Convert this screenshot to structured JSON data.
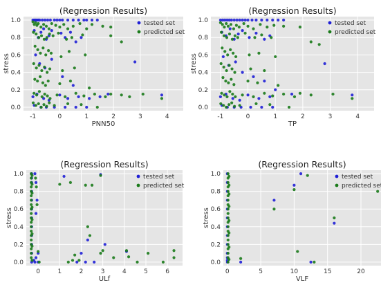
{
  "colors": {
    "panel_bg": "#e5e5e5",
    "grid": "#ffffff",
    "tested": "#1f1fd6",
    "predicted": "#1a7a1a",
    "text": "#333333"
  },
  "chart_data": [
    {
      "type": "scatter",
      "title": "(Regression Results)",
      "xlabel": "PNN50",
      "ylabel": "stress",
      "xlim": [
        -1.35,
        4.6
      ],
      "ylim": [
        -0.04,
        1.04
      ],
      "xticks": [
        "-1",
        "0",
        "1",
        "2",
        "3",
        "4"
      ],
      "yticks": [
        "0.0",
        "0.2",
        "0.4",
        "0.6",
        "0.8",
        "1.0"
      ],
      "legend": "top-right",
      "grid": true,
      "series": [
        {
          "name": "tested set",
          "x": [
            -1.0,
            -0.95,
            -0.9,
            -0.85,
            -0.8,
            -0.75,
            -0.65,
            -0.55,
            -0.45,
            -0.35,
            -0.2,
            -0.1,
            0.0,
            0.1,
            0.3,
            0.5,
            0.7,
            0.9,
            1.0,
            1.2,
            1.4,
            -0.95,
            -0.8,
            -0.7,
            -0.6,
            -0.5,
            -0.4,
            -0.3,
            0.05,
            0.2,
            0.4,
            0.6,
            0.8,
            -0.9,
            -0.75,
            -0.55,
            -0.3,
            0.1,
            0.5,
            -1.0,
            -0.85,
            -0.6,
            -0.4,
            0.0,
            0.3,
            0.7,
            1.1,
            1.5,
            1.8,
            2.8,
            3.8,
            -0.95,
            -0.7,
            -0.5,
            -0.2,
            0.2,
            0.6,
            1.0
          ],
          "y": [
            1.0,
            1.0,
            1.0,
            1.0,
            1.0,
            1.0,
            1.0,
            1.0,
            1.0,
            1.0,
            1.0,
            1.0,
            1.0,
            1.0,
            1.0,
            1.0,
            1.0,
            1.0,
            1.0,
            1.0,
            1.0,
            0.88,
            0.8,
            0.86,
            0.9,
            0.78,
            0.82,
            0.88,
            0.85,
            0.8,
            0.86,
            0.75,
            0.8,
            0.6,
            0.5,
            0.45,
            0.55,
            0.35,
            0.25,
            0.12,
            0.15,
            0.1,
            0.08,
            0.14,
            0.1,
            0.12,
            0.1,
            0.12,
            0.15,
            0.52,
            0.14,
            0.02,
            0.0,
            0.0,
            0.0,
            0.0,
            0.0,
            0.0
          ]
        },
        {
          "name": "predicted set",
          "x": [
            -1.0,
            -0.95,
            -0.9,
            -0.85,
            -0.8,
            -0.7,
            -0.6,
            -0.5,
            -0.4,
            -0.3,
            -0.15,
            0.0,
            0.15,
            0.3,
            0.5,
            0.75,
            1.0,
            1.2,
            1.6,
            1.9,
            -0.98,
            -0.88,
            -0.78,
            -0.68,
            -0.58,
            -0.48,
            -0.38,
            -0.25,
            -0.05,
            0.25,
            0.45,
            0.85,
            1.9,
            2.3,
            -0.92,
            -0.82,
            -0.72,
            -0.62,
            -0.52,
            -0.42,
            -0.32,
            0.05,
            0.35,
            0.95,
            -0.97,
            -0.87,
            -0.77,
            -0.67,
            -0.57,
            -0.47,
            -0.37,
            0.1,
            0.55,
            -0.93,
            -0.83,
            -0.73,
            -0.63,
            -0.53,
            -0.43,
            0.0,
            0.4,
            1.1,
            -0.96,
            -0.86,
            -0.76,
            -0.66,
            -0.56,
            -0.46,
            -0.36,
            -0.1,
            0.2,
            0.6,
            0.9,
            1.3,
            1.7,
            1.9,
            2.3,
            2.6,
            3.1,
            3.8,
            -0.99,
            -0.89,
            -0.79,
            -0.69,
            -0.59,
            -0.49,
            -0.39,
            -0.2,
            0.3,
            0.8,
            1.4
          ],
          "y": [
            0.98,
            0.95,
            0.97,
            0.94,
            0.96,
            0.92,
            0.95,
            0.93,
            0.9,
            0.96,
            0.94,
            0.92,
            0.95,
            0.9,
            0.93,
            0.96,
            0.9,
            0.95,
            0.93,
            0.92,
            0.86,
            0.84,
            0.8,
            0.82,
            0.78,
            0.8,
            0.84,
            0.82,
            0.85,
            0.78,
            0.8,
            0.83,
            0.82,
            0.75,
            0.7,
            0.66,
            0.62,
            0.68,
            0.6,
            0.65,
            0.62,
            0.58,
            0.64,
            0.6,
            0.5,
            0.45,
            0.48,
            0.42,
            0.46,
            0.4,
            0.44,
            0.42,
            0.45,
            0.32,
            0.3,
            0.35,
            0.28,
            0.25,
            0.3,
            0.27,
            0.3,
            0.22,
            0.16,
            0.14,
            0.18,
            0.12,
            0.15,
            0.13,
            0.1,
            0.14,
            0.12,
            0.16,
            0.13,
            0.15,
            0.12,
            0.15,
            0.14,
            0.12,
            0.15,
            0.1,
            0.05,
            0.02,
            0.04,
            0.0,
            0.03,
            0.01,
            0.05,
            0.02,
            0.04,
            0.03,
            0.0
          ]
        }
      ]
    },
    {
      "type": "scatter",
      "title": "(Regression Results)",
      "xlabel": "TP",
      "ylabel": "stress",
      "xlim": [
        -1.35,
        4.6
      ],
      "ylim": [
        -0.04,
        1.04
      ],
      "xticks": [
        "-1",
        "0",
        "1",
        "2",
        "3",
        "4"
      ],
      "yticks": [
        "0.0",
        "0.2",
        "0.4",
        "0.6",
        "0.8",
        "1.0"
      ],
      "legend": "top-right",
      "grid": true,
      "series": [
        {
          "name": "tested set",
          "x": [
            -1.0,
            -0.92,
            -0.84,
            -0.76,
            -0.68,
            -0.6,
            -0.5,
            -0.4,
            -0.3,
            -0.2,
            -0.1,
            0.0,
            0.15,
            0.3,
            0.5,
            0.7,
            0.9,
            1.1,
            1.3,
            -0.95,
            -0.8,
            -0.65,
            -0.5,
            -0.35,
            -0.2,
            0.05,
            0.3,
            0.6,
            0.8,
            -0.9,
            -0.7,
            -0.45,
            -0.2,
            0.2,
            0.6,
            -1.0,
            -0.8,
            -0.55,
            -0.3,
            0.0,
            0.4,
            0.8,
            1.0,
            1.6,
            2.8,
            3.8,
            -0.95,
            -0.75,
            -0.5,
            -0.25,
            0.1,
            0.5,
            0.9
          ],
          "y": [
            1.0,
            1.0,
            1.0,
            1.0,
            1.0,
            1.0,
            1.0,
            1.0,
            1.0,
            1.0,
            1.0,
            1.0,
            1.0,
            1.0,
            1.0,
            1.0,
            1.0,
            1.0,
            1.0,
            0.86,
            0.82,
            0.9,
            0.78,
            0.84,
            0.88,
            0.8,
            0.85,
            0.78,
            0.82,
            0.58,
            0.48,
            0.52,
            0.4,
            0.35,
            0.3,
            0.12,
            0.15,
            0.1,
            0.08,
            0.14,
            0.1,
            0.12,
            0.2,
            0.15,
            0.5,
            0.14,
            0.02,
            0.0,
            0.0,
            0.0,
            0.0,
            0.0,
            0.0
          ]
        },
        {
          "name": "predicted set",
          "x": [
            -1.0,
            -0.93,
            -0.86,
            -0.79,
            -0.72,
            -0.62,
            -0.52,
            -0.42,
            -0.32,
            -0.15,
            0.0,
            0.2,
            0.45,
            0.7,
            0.95,
            1.3,
            1.9,
            -0.97,
            -0.87,
            -0.77,
            -0.67,
            -0.57,
            -0.47,
            -0.37,
            -0.1,
            0.25,
            0.5,
            0.85,
            2.3,
            2.6,
            -0.94,
            -0.84,
            -0.74,
            -0.64,
            -0.54,
            -0.44,
            0.05,
            0.4,
            1.0,
            -0.98,
            -0.88,
            -0.78,
            -0.68,
            -0.58,
            -0.48,
            0.1,
            0.6,
            -0.91,
            -0.81,
            -0.71,
            -0.61,
            -0.51,
            0.0,
            0.35,
            1.1,
            -0.96,
            -0.86,
            -0.76,
            -0.66,
            -0.56,
            -0.46,
            -0.2,
            0.2,
            0.6,
            0.9,
            1.3,
            1.7,
            1.9,
            2.3,
            3.1,
            3.8,
            -0.99,
            -0.89,
            -0.79,
            -0.69,
            -0.59,
            -0.49,
            -0.3,
            0.3,
            0.8,
            1.5
          ],
          "y": [
            0.97,
            0.95,
            0.92,
            0.96,
            0.93,
            0.95,
            0.9,
            0.94,
            0.92,
            0.96,
            0.93,
            0.9,
            0.95,
            0.92,
            0.94,
            0.93,
            0.92,
            0.86,
            0.82,
            0.8,
            0.84,
            0.78,
            0.82,
            0.8,
            0.85,
            0.8,
            0.83,
            0.8,
            0.75,
            0.72,
            0.68,
            0.64,
            0.6,
            0.66,
            0.62,
            0.58,
            0.6,
            0.62,
            0.58,
            0.5,
            0.46,
            0.42,
            0.48,
            0.44,
            0.4,
            0.44,
            0.42,
            0.34,
            0.3,
            0.28,
            0.32,
            0.26,
            0.3,
            0.28,
            0.25,
            0.16,
            0.14,
            0.12,
            0.18,
            0.15,
            0.12,
            0.14,
            0.12,
            0.16,
            0.13,
            0.15,
            0.12,
            0.16,
            0.14,
            0.15,
            0.1,
            0.04,
            0.02,
            0.0,
            0.03,
            0.05,
            0.01,
            0.02,
            0.04,
            0.03,
            0.0
          ]
        }
      ]
    },
    {
      "type": "scatter",
      "title": "(Regression Results)",
      "xlabel": "ULf",
      "ylabel": "stress",
      "xlim": [
        -0.55,
        6.7
      ],
      "ylim": [
        -0.04,
        1.04
      ],
      "xticks": [
        "0",
        "1",
        "2",
        "3",
        "4",
        "5",
        "6"
      ],
      "yticks": [
        "0.0",
        "0.2",
        "0.4",
        "0.6",
        "0.8",
        "1.0"
      ],
      "legend": "top-right",
      "grid": true,
      "series": [
        {
          "name": "tested set",
          "x": [
            -0.3,
            -0.3,
            -0.3,
            -0.3,
            -0.3,
            -0.3,
            -0.3,
            -0.3,
            -0.3,
            -0.3,
            -0.3,
            -0.3,
            -0.15,
            -0.1,
            -0.05,
            -0.1,
            0.0,
            1.2,
            2.9,
            2.3,
            2.2,
            3.1,
            4.1,
            -0.2,
            -0.15,
            -0.1,
            2.0,
            1.8,
            2.6,
            0.0
          ],
          "y": [
            1.0,
            0.95,
            0.9,
            0.8,
            0.7,
            0.6,
            0.5,
            0.4,
            0.3,
            0.2,
            0.1,
            0.0,
            1.0,
            0.9,
            0.7,
            0.55,
            0.1,
            0.97,
            0.99,
            0.25,
            0.0,
            0.2,
            0.12,
            0.02,
            0.0,
            0.05,
            0.1,
            0.0,
            0.0,
            0.0
          ]
        },
        {
          "name": "predicted set",
          "x": [
            -0.32,
            -0.32,
            -0.32,
            -0.32,
            -0.32,
            -0.32,
            -0.32,
            -0.32,
            -0.32,
            -0.32,
            -0.32,
            -0.32,
            -0.32,
            -0.32,
            -0.32,
            -0.32,
            -0.32,
            -0.32,
            -0.32,
            -0.32,
            -0.28,
            -0.28,
            -0.28,
            -0.28,
            -0.28,
            -0.28,
            -0.28,
            -0.28,
            -0.12,
            -0.08,
            -0.05,
            0.0,
            1.0,
            1.5,
            2.2,
            2.3,
            2.5,
            2.9,
            3.0,
            4.1,
            4.2,
            5.1,
            6.3,
            6.3,
            5.8,
            1.9,
            2.4,
            1.7,
            2.9,
            3.5,
            1.4,
            1.6,
            4.6,
            0.05
          ],
          "y": [
            1.0,
            0.95,
            0.9,
            0.85,
            0.8,
            0.75,
            0.7,
            0.65,
            0.6,
            0.55,
            0.5,
            0.45,
            0.4,
            0.35,
            0.3,
            0.25,
            0.2,
            0.15,
            0.1,
            0.05,
            0.98,
            0.88,
            0.78,
            0.62,
            0.48,
            0.32,
            0.18,
            0.02,
            0.95,
            0.85,
            0.65,
            0.12,
            0.88,
            0.9,
            0.87,
            0.4,
            0.87,
            0.98,
            0.13,
            0.13,
            0.06,
            0.1,
            0.13,
            0.05,
            0.0,
            0.02,
            0.3,
            0.08,
            0.1,
            0.05,
            0.0,
            0.02,
            0.0,
            0.0
          ]
        }
      ]
    },
    {
      "type": "scatter",
      "title": "(Regression Results)",
      "xlabel": "VLF",
      "ylabel": "stress",
      "xlim": [
        -0.6,
        23
      ],
      "ylim": [
        -0.04,
        1.04
      ],
      "xticks": [
        "0",
        "5",
        "10",
        "15",
        "20"
      ],
      "yticks": [
        "0.0",
        "0.2",
        "0.4",
        "0.6",
        "0.8",
        "1.0"
      ],
      "legend": "top-right",
      "grid": true,
      "series": [
        {
          "name": "tested set",
          "x": [
            0.0,
            0.0,
            0.0,
            0.0,
            0.0,
            0.0,
            0.0,
            0.0,
            0.0,
            0.0,
            0.0,
            0.0,
            0.0,
            11.0,
            16.0,
            7.0,
            10.0,
            2.0,
            12.5
          ],
          "y": [
            1.0,
            0.9,
            0.8,
            0.7,
            0.6,
            0.5,
            0.4,
            0.3,
            0.2,
            0.1,
            0.05,
            0.02,
            0.0,
            1.0,
            0.44,
            0.7,
            0.87,
            0.0,
            0.0
          ]
        },
        {
          "name": "predicted set",
          "x": [
            0.1,
            0.1,
            0.1,
            0.1,
            0.1,
            0.1,
            0.1,
            0.1,
            0.1,
            0.1,
            0.1,
            0.1,
            0.1,
            0.1,
            0.1,
            0.1,
            0.1,
            0.1,
            0.1,
            0.1,
            0.1,
            0.25,
            0.25,
            0.25,
            0.25,
            0.25,
            0.25,
            0.25,
            0.25,
            12.0,
            16.0,
            7.0,
            10.0,
            10.5,
            22.5,
            2.0,
            13.0
          ],
          "y": [
            1.0,
            0.95,
            0.9,
            0.85,
            0.8,
            0.75,
            0.7,
            0.65,
            0.6,
            0.55,
            0.5,
            0.45,
            0.4,
            0.35,
            0.3,
            0.25,
            0.2,
            0.15,
            0.1,
            0.05,
            0.0,
            0.97,
            0.87,
            0.77,
            0.63,
            0.47,
            0.33,
            0.17,
            0.03,
            0.98,
            0.5,
            0.6,
            0.82,
            0.12,
            0.8,
            0.04,
            0.0
          ]
        }
      ]
    }
  ]
}
